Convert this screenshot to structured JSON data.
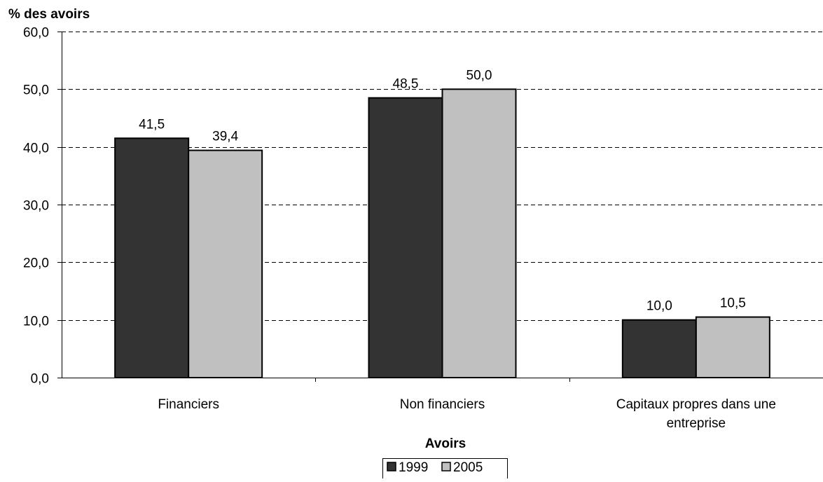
{
  "chart_data": {
    "type": "bar",
    "ylabel": "% des avoirs",
    "xlabel": "Avoirs",
    "ylim": [
      0,
      60
    ],
    "yticks": [
      "0,0",
      "10,0",
      "20,0",
      "30,0",
      "40,0",
      "50,0",
      "60,0"
    ],
    "ytick_values": [
      0,
      10,
      20,
      30,
      40,
      50,
      60
    ],
    "categories": [
      [
        "Financiers"
      ],
      [
        "Non financiers"
      ],
      [
        "Capitaux propres dans une",
        "entreprise"
      ]
    ],
    "series": [
      {
        "name": "1999",
        "color": "#333333",
        "values": [
          41.5,
          48.5,
          10.0
        ],
        "labels": [
          "41,5",
          "48,5",
          "10,0"
        ]
      },
      {
        "name": "2005",
        "color": "#c0c0c0",
        "values": [
          39.4,
          50.0,
          10.5
        ],
        "labels": [
          "39,4",
          "50,0",
          "10,5"
        ]
      }
    ],
    "grid": true,
    "grid_style": "dashed",
    "legend_position": "bottom-center"
  }
}
